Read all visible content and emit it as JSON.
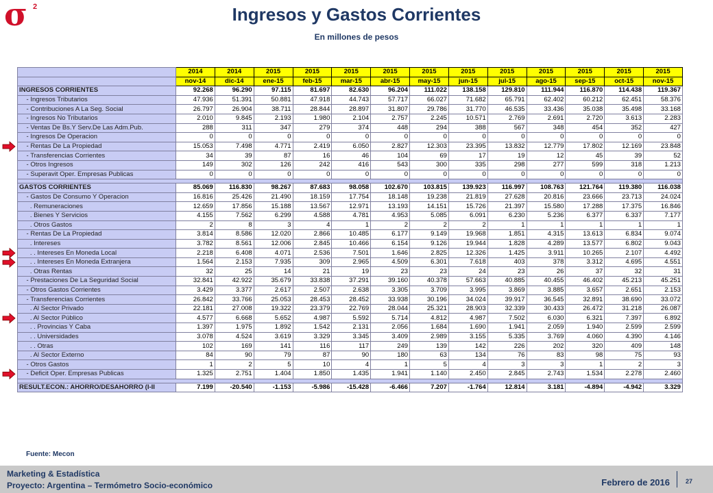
{
  "logo": {
    "symbol": "σ",
    "superscript": "2"
  },
  "header": {
    "title": "Ingresos y Gastos Corrientes",
    "subtitle": "En millones de pesos"
  },
  "table": {
    "years": [
      "2014",
      "2014",
      "2015",
      "2015",
      "2015",
      "2015",
      "2015",
      "2015",
      "2015",
      "2015",
      "2015",
      "2015",
      "2015"
    ],
    "months": [
      "nov-14",
      "dic-14",
      "ene-15",
      "feb-15",
      "mar-15",
      "abr-15",
      "may-15",
      "jun-15",
      "jul-15",
      "ago-15",
      "sep-15",
      "oct-15",
      "nov-15"
    ],
    "sections": [
      {
        "rows": [
          {
            "label": "INGRESOS CORRIENTES",
            "bold": true,
            "values": [
              "92.268",
              "96.290",
              "97.115",
              "81.697",
              "82.630",
              "96.204",
              "111.022",
              "138.158",
              "129.810",
              "111.944",
              "116.870",
              "114.438",
              "119.367"
            ]
          },
          {
            "label": "    - Ingresos Tributarios",
            "values": [
              "47.936",
              "51.391",
              "50.881",
              "47.918",
              "44.743",
              "57.717",
              "66.027",
              "71.682",
              "65.791",
              "62.402",
              "60.212",
              "62.451",
              "58.376"
            ]
          },
          {
            "label": "    - Contribuciones A La Seg. Social",
            "values": [
              "26.797",
              "26.904",
              "38.711",
              "28.844",
              "28.897",
              "31.807",
              "29.786",
              "31.770",
              "46.535",
              "33.436",
              "35.038",
              "35.498",
              "33.168"
            ]
          },
          {
            "label": "    - Ingresos No Tributarios",
            "values": [
              "2.010",
              "9.845",
              "2.193",
              "1.980",
              "2.104",
              "2.757",
              "2.245",
              "10.571",
              "2.769",
              "2.691",
              "2.720",
              "3.613",
              "2.283"
            ]
          },
          {
            "label": "    - Ventas De Bs.Y Serv.De Las Adm.Pub.",
            "values": [
              "288",
              "311",
              "347",
              "279",
              "374",
              "448",
              "294",
              "388",
              "567",
              "348",
              "454",
              "352",
              "427"
            ]
          },
          {
            "label": "    - Ingresos De Operacion",
            "values": [
              "0",
              "0",
              "0",
              "0",
              "0",
              "0",
              "0",
              "0",
              "0",
              "0",
              "0",
              "0",
              "0"
            ]
          },
          {
            "label": "    - Rentas De La Propiedad",
            "marked": true,
            "values": [
              "15.053",
              "7.498",
              "4.771",
              "2.419",
              "6.050",
              "2.827",
              "12.303",
              "23.395",
              "13.832",
              "12.779",
              "17.802",
              "12.169",
              "23.848"
            ]
          },
          {
            "label": "    - Transferencias Corrientes",
            "values": [
              "34",
              "39",
              "87",
              "16",
              "46",
              "104",
              "69",
              "17",
              "19",
              "12",
              "45",
              "39",
              "52"
            ]
          },
          {
            "label": "    - Otros Ingresos",
            "values": [
              "149",
              "302",
              "126",
              "242",
              "416",
              "543",
              "300",
              "335",
              "298",
              "277",
              "599",
              "318",
              "1.213"
            ]
          },
          {
            "label": "    - Superavit Oper. Empresas Publicas",
            "values": [
              "0",
              "0",
              "0",
              "0",
              "0",
              "0",
              "0",
              "0",
              "0",
              "0",
              "0",
              "0",
              "0"
            ]
          }
        ]
      },
      {
        "rows": [
          {
            "label": "GASTOS CORRIENTES",
            "bold": true,
            "values": [
              "85.069",
              "116.830",
              "98.267",
              "87.683",
              "98.058",
              "102.670",
              "103.815",
              "139.923",
              "116.997",
              "108.763",
              "121.764",
              "119.380",
              "116.038"
            ]
          },
          {
            "label": "    - Gastos De Consumo Y Operacion",
            "values": [
              "16.816",
              "25.426",
              "21.490",
              "18.159",
              "17.754",
              "18.148",
              "19.238",
              "21.819",
              "27.628",
              "20.816",
              "23.666",
              "23.713",
              "24.024"
            ]
          },
          {
            "label": "      . Remuneraciones",
            "values": [
              "12.659",
              "17.856",
              "15.188",
              "13.567",
              "12.971",
              "13.193",
              "14.151",
              "15.726",
              "21.397",
              "15.580",
              "17.288",
              "17.375",
              "16.846"
            ]
          },
          {
            "label": "      . Bienes Y Servicios",
            "values": [
              "4.155",
              "7.562",
              "6.299",
              "4.588",
              "4.781",
              "4.953",
              "5.085",
              "6.091",
              "6.230",
              "5.236",
              "6.377",
              "6.337",
              "7.177"
            ]
          },
          {
            "label": "      . Otros Gastos",
            "values": [
              "2",
              "8",
              "3",
              "4",
              "1",
              "2",
              "2",
              "2",
              "1",
              "1",
              "1",
              "1",
              "1"
            ]
          },
          {
            "label": "    - Rentas De La Propiedad",
            "values": [
              "3.814",
              "8.586",
              "12.020",
              "2.866",
              "10.485",
              "6.177",
              "9.149",
              "19.968",
              "1.851",
              "4.315",
              "13.613",
              "6.834",
              "9.074"
            ]
          },
          {
            "label": "      . Intereses",
            "values": [
              "3.782",
              "8.561",
              "12.006",
              "2.845",
              "10.466",
              "6.154",
              "9.126",
              "19.944",
              "1.828",
              "4.289",
              "13.577",
              "6.802",
              "9.043"
            ]
          },
          {
            "label": "      . . Intereses En Moneda Local",
            "marked": true,
            "values": [
              "2.218",
              "6.408",
              "4.071",
              "2.536",
              "7.501",
              "1.646",
              "2.825",
              "12.326",
              "1.425",
              "3.911",
              "10.265",
              "2.107",
              "4.492"
            ]
          },
          {
            "label": "      . . Intereses En Moneda Extranjera",
            "marked": true,
            "values": [
              "1.564",
              "2.153",
              "7.935",
              "309",
              "2.965",
              "4.509",
              "6.301",
              "7.618",
              "403",
              "378",
              "3.312",
              "4.695",
              "4.551"
            ]
          },
          {
            "label": "      . Otras Rentas",
            "values": [
              "32",
              "25",
              "14",
              "21",
              "19",
              "23",
              "23",
              "24",
              "23",
              "26",
              "37",
              "32",
              "31"
            ]
          },
          {
            "label": "    - Prestaciones De La Seguridad Social",
            "values": [
              "32.841",
              "42.922",
              "35.679",
              "33.838",
              "37.291",
              "39.160",
              "40.378",
              "57.663",
              "40.885",
              "40.455",
              "46.402",
              "45.213",
              "45.251"
            ]
          },
          {
            "label": "    - Otros Gastos Corrientes",
            "values": [
              "3.429",
              "3.377",
              "2.617",
              "2.507",
              "2.638",
              "3.305",
              "3.709",
              "3.995",
              "3.869",
              "3.885",
              "3.657",
              "2.651",
              "2.153"
            ]
          },
          {
            "label": "    - Transferencias Corrientes",
            "values": [
              "26.842",
              "33.766",
              "25.053",
              "28.453",
              "28.452",
              "33.938",
              "30.196",
              "34.024",
              "39.917",
              "36.545",
              "32.891",
              "38.690",
              "33.072"
            ]
          },
          {
            "label": "      . Al Sector Privado",
            "values": [
              "22.181",
              "27.008",
              "19.322",
              "23.379",
              "22.769",
              "28.044",
              "25.321",
              "28.903",
              "32.339",
              "30.433",
              "26.472",
              "31.218",
              "26.087"
            ]
          },
          {
            "label": "      . Al Sector Público",
            "marked": true,
            "values": [
              "4.577",
              "6.668",
              "5.652",
              "4.987",
              "5.592",
              "5.714",
              "4.812",
              "4.987",
              "7.502",
              "6.030",
              "6.321",
              "7.397",
              "6.892"
            ]
          },
          {
            "label": "      . . Provincias Y Caba",
            "values": [
              "1.397",
              "1.975",
              "1.892",
              "1.542",
              "2.131",
              "2.056",
              "1.684",
              "1.690",
              "1.941",
              "2.059",
              "1.940",
              "2.599",
              "2.599"
            ]
          },
          {
            "label": "      . . Universidades",
            "values": [
              "3.078",
              "4.524",
              "3.619",
              "3.329",
              "3.345",
              "3.409",
              "2.989",
              "3.155",
              "5.335",
              "3.769",
              "4.060",
              "4.390",
              "4.146"
            ]
          },
          {
            "label": "      . . Otras",
            "values": [
              "102",
              "169",
              "141",
              "116",
              "117",
              "249",
              "139",
              "142",
              "226",
              "202",
              "320",
              "409",
              "148"
            ]
          },
          {
            "label": "      . Al Sector Externo",
            "values": [
              "84",
              "90",
              "79",
              "87",
              "90",
              "180",
              "63",
              "134",
              "76",
              "83",
              "98",
              "75",
              "93"
            ]
          },
          {
            "label": "    - Otros Gastos",
            "values": [
              "1",
              "2",
              "5",
              "10",
              "4",
              "1",
              "5",
              "4",
              "3",
              "3",
              "1",
              "2",
              "3"
            ]
          },
          {
            "label": "    - Deficit Oper. Empresas Publicas",
            "marked": true,
            "values": [
              "1.325",
              "2.751",
              "1.404",
              "1.850",
              "1.435",
              "1.941",
              "1.140",
              "2.450",
              "2.845",
              "2.743",
              "1.534",
              "2.278",
              "2.460"
            ]
          }
        ]
      },
      {
        "rows": [
          {
            "label": "RESULT.ECON.: AHORRO/DESAHORRO (I-II",
            "bold": true,
            "values": [
              "7.199",
              "-20.540",
              "-1.153",
              "-5.986",
              "-15.428",
              "-6.466",
              "7.207",
              "-1.764",
              "12.814",
              "3.181",
              "-4.894",
              "-4.942",
              "3.329"
            ]
          }
        ]
      }
    ]
  },
  "source": "Fuente: Mecon",
  "footer": {
    "line1": "Marketing & Estadística",
    "line2": "Proyecto: Argentina – Termómetro Socio-económico",
    "date": "Febrero de 2016",
    "page": "27"
  }
}
